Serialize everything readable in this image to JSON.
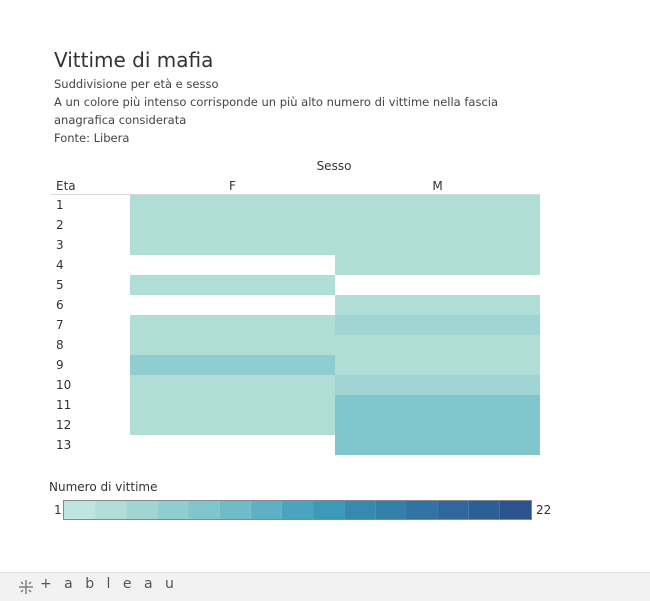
{
  "header": {
    "title": "Vittime di mafia",
    "subtitle_line1": "Suddivisione per età e sesso",
    "subtitle_line2": "A un colore più intenso corrisponde un più alto numero di vittime nella fascia",
    "subtitle_line3": "anagrafica considerata",
    "source": "Fonte: Libera"
  },
  "chart_data": {
    "type": "heatmap",
    "title": "Vittime di mafia",
    "column_group_label": "Sesso",
    "row_axis_label": "Eta",
    "columns": [
      "F",
      "M"
    ],
    "rows": [
      "1",
      "2",
      "3",
      "4",
      "5",
      "6",
      "7",
      "8",
      "9",
      "10",
      "11",
      "12",
      "13"
    ],
    "values": [
      {
        "row": "1",
        "col": "F",
        "value": 2
      },
      {
        "row": "2",
        "col": "F",
        "value": 2
      },
      {
        "row": "3",
        "col": "F",
        "value": 2
      },
      {
        "row": "5",
        "col": "F",
        "value": 2
      },
      {
        "row": "7",
        "col": "F",
        "value": 2
      },
      {
        "row": "8",
        "col": "F",
        "value": 2
      },
      {
        "row": "9",
        "col": "F",
        "value": 6
      },
      {
        "row": "10",
        "col": "F",
        "value": 2
      },
      {
        "row": "11",
        "col": "F",
        "value": 3
      },
      {
        "row": "12",
        "col": "F",
        "value": 3
      },
      {
        "row": "1",
        "col": "M",
        "value": 2
      },
      {
        "row": "2",
        "col": "M",
        "value": 2
      },
      {
        "row": "3",
        "col": "M",
        "value": 3
      },
      {
        "row": "4",
        "col": "M",
        "value": 2
      },
      {
        "row": "6",
        "col": "M",
        "value": 2
      },
      {
        "row": "7",
        "col": "M",
        "value": 4
      },
      {
        "row": "8",
        "col": "M",
        "value": 2
      },
      {
        "row": "9",
        "col": "M",
        "value": 2
      },
      {
        "row": "10",
        "col": "M",
        "value": 4
      },
      {
        "row": "11",
        "col": "M",
        "value": 7
      },
      {
        "row": "12",
        "col": "M",
        "value": 7
      },
      {
        "row": "13",
        "col": "M",
        "value": 7
      }
    ],
    "color_scale": {
      "label": "Numero di vittime",
      "min": 1,
      "max": 22,
      "min_label": "1",
      "max_label": "22",
      "steps": [
        "#c0e5dc",
        "#b0ded7",
        "#a0d5d3",
        "#90cdd0",
        "#80c4cc",
        "#70bbc8",
        "#5fb0c4",
        "#4aa4c0",
        "#3b9ab9",
        "#3689b1",
        "#357fab",
        "#3273a6",
        "#2f679e",
        "#2d5f97",
        "#2c5390"
      ]
    }
  },
  "footer": {
    "brand": "+ a b l e a u"
  }
}
